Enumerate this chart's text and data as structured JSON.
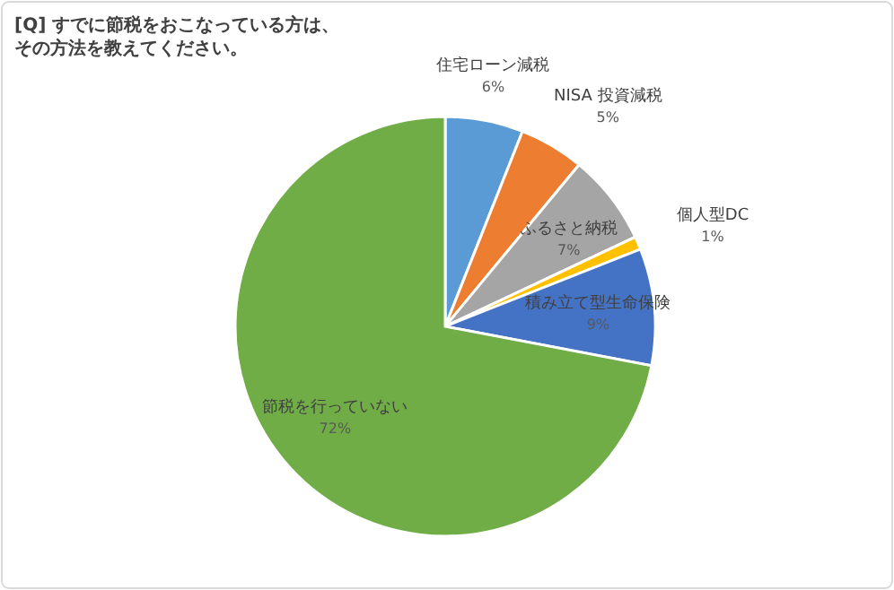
{
  "chart_data": {
    "type": "pie",
    "title": "[Q] すでに節税をおこなっている方は、その方法を教えてください。",
    "categories": [
      "住宅ローン減税",
      "NISA 投資減税",
      "ふるさと納税",
      "個人型DC",
      "積み立て型生命保険",
      "節税を行っていない"
    ],
    "values": [
      6,
      5,
      7,
      1,
      9,
      72
    ],
    "colors": [
      "#5b9bd5",
      "#ed7d31",
      "#a5a5a5",
      "#ffc000",
      "#4472c4",
      "#70ad47"
    ],
    "value_labels": [
      "6%",
      "5%",
      "7%",
      "1%",
      "9%",
      "72%"
    ]
  }
}
